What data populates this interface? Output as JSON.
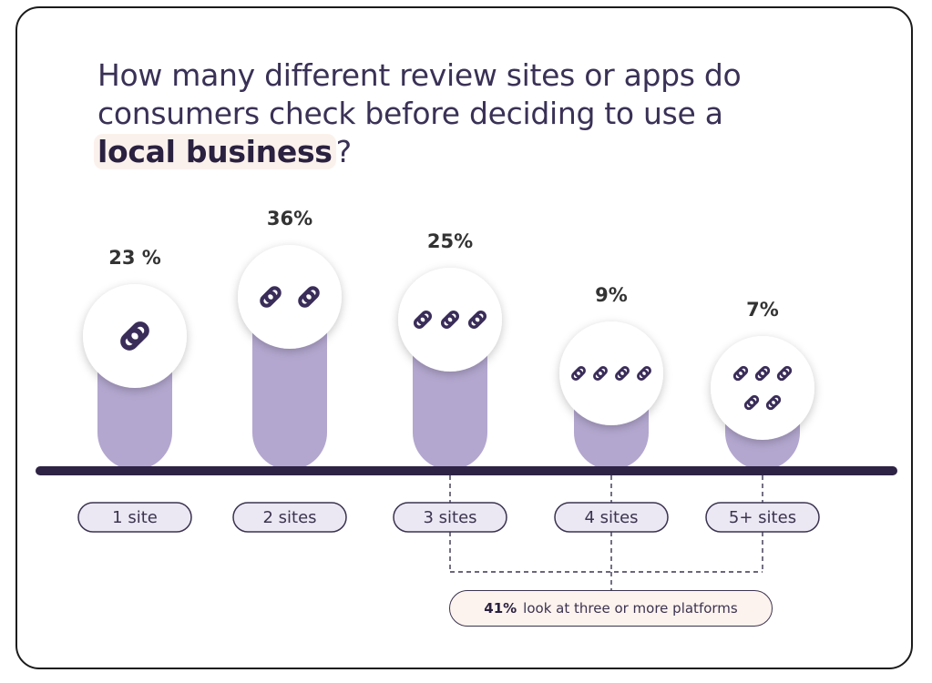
{
  "title": {
    "line1": "How many different review sites or apps do",
    "line2": "consumers check before deciding to use a",
    "highlight": "local business",
    "end": "?"
  },
  "chart_data": {
    "type": "bar",
    "categories": [
      "1 site",
      "2 sites",
      "3 sites",
      "4 sites",
      "5+ sites"
    ],
    "values": [
      23,
      36,
      25,
      9,
      7
    ],
    "value_labels": [
      "23 %",
      "36%",
      "25%",
      "9%",
      "7%"
    ],
    "link_icons_per_category": [
      1,
      2,
      3,
      4,
      5
    ],
    "ylim": [
      0,
      40
    ],
    "grid": false,
    "xlabel": "",
    "ylabel": ""
  },
  "callout": {
    "value": "41%",
    "text": "look at three or more platforms",
    "applies_to": [
      "3 sites",
      "4 sites",
      "5+ sites"
    ]
  },
  "colors": {
    "bar": "#b3a7cf",
    "baseline": "#2e2345",
    "text": "#3a3156",
    "icon": "#3a2d59",
    "highlight_bg": "#fbf1ec"
  }
}
